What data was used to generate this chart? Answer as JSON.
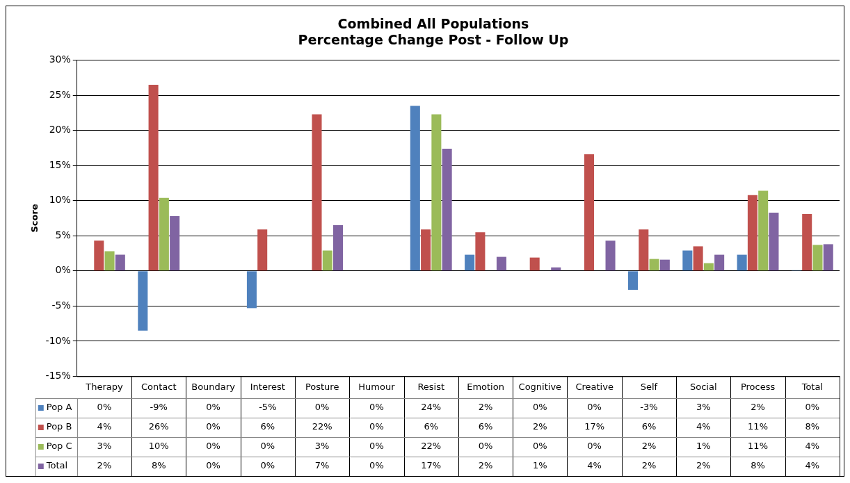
{
  "chart_data": {
    "type": "bar",
    "title": "Combined All Populations",
    "subtitle": "Percentage Change Post - Follow Up",
    "ylabel": "Score",
    "categories": [
      "Therapy",
      "Contact",
      "Boundary",
      "Interest",
      "Posture",
      "Humour",
      "Resist",
      "Emotion",
      "Cognitive",
      "Creative",
      "Self",
      "Social",
      "Process",
      "Total"
    ],
    "series": [
      {
        "name": "Pop A",
        "color": "#4f81bd",
        "values": [
          0,
          -8.5,
          0,
          -5.3,
          0,
          0,
          23.5,
          2.3,
          0,
          0,
          -2.7,
          2.9,
          2.3,
          0.1
        ],
        "value_labels": [
          "0%",
          "-9%",
          "0%",
          "-5%",
          "0%",
          "0%",
          "24%",
          "2%",
          "0%",
          "0%",
          "-3%",
          "3%",
          "2%",
          "0%"
        ]
      },
      {
        "name": "Pop B",
        "color": "#c0504d",
        "values": [
          4.3,
          26.5,
          0,
          5.9,
          22.3,
          0,
          5.9,
          5.5,
          1.9,
          16.6,
          5.9,
          3.5,
          10.8,
          8.1
        ],
        "value_labels": [
          "4%",
          "26%",
          "0%",
          "6%",
          "22%",
          "0%",
          "6%",
          "6%",
          "2%",
          "17%",
          "6%",
          "4%",
          "11%",
          "8%"
        ]
      },
      {
        "name": "Pop C",
        "color": "#9bbb59",
        "values": [
          2.8,
          10.4,
          0,
          0,
          2.9,
          0,
          22.3,
          0,
          0,
          0,
          1.7,
          1.1,
          11.4,
          3.7
        ],
        "value_labels": [
          "3%",
          "10%",
          "0%",
          "0%",
          "3%",
          "0%",
          "22%",
          "0%",
          "0%",
          "0%",
          "2%",
          "1%",
          "11%",
          "4%"
        ]
      },
      {
        "name": "Total",
        "color": "#8064a2",
        "values": [
          2.3,
          7.8,
          0,
          0,
          6.5,
          0,
          17.4,
          2.0,
          0.5,
          4.3,
          1.6,
          2.3,
          8.3,
          3.8
        ],
        "value_labels": [
          "2%",
          "8%",
          "0%",
          "0%",
          "7%",
          "0%",
          "17%",
          "2%",
          "1%",
          "4%",
          "2%",
          "2%",
          "8%",
          "4%"
        ]
      }
    ],
    "ylim": [
      -15,
      30
    ],
    "yticks": [
      {
        "value": -15,
        "label": "-15%"
      },
      {
        "value": -10,
        "label": "-10%"
      },
      {
        "value": -5,
        "label": "-5%"
      },
      {
        "value": 0,
        "label": "0%"
      },
      {
        "value": 5,
        "label": "5%"
      },
      {
        "value": 10,
        "label": "10%"
      },
      {
        "value": 15,
        "label": "15%"
      },
      {
        "value": 20,
        "label": "20%"
      },
      {
        "value": 25,
        "label": "25%"
      },
      {
        "value": 30,
        "label": "30%"
      }
    ],
    "grid": "y",
    "legend": "bottom"
  }
}
